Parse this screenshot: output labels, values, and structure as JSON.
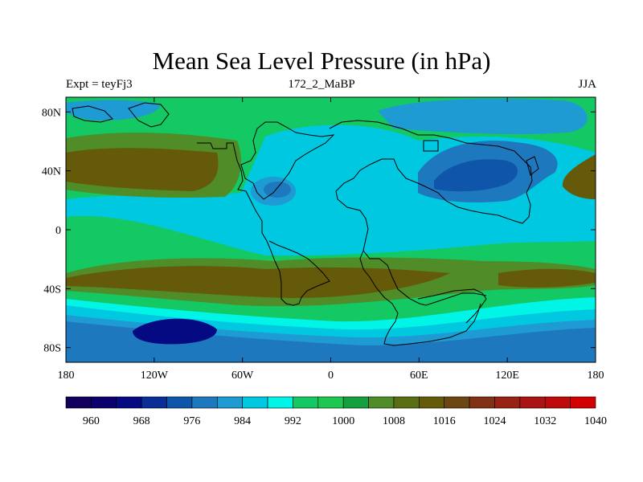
{
  "title": "Mean Sea Level Pressure (in hPa)",
  "subtitle_left": "Expt = teyFj3",
  "subtitle_center": "172_2_MaBP",
  "subtitle_right": "JJA",
  "map": {
    "projection": "cylindrical equidistant",
    "lon_range": [
      -180,
      180
    ],
    "lat_range": [
      -90,
      90
    ],
    "lat_ticks": [
      {
        "value": 80,
        "label": "80N"
      },
      {
        "value": 40,
        "label": "40N"
      },
      {
        "value": 0,
        "label": "0"
      },
      {
        "value": -40,
        "label": "40S"
      },
      {
        "value": -80,
        "label": "80S"
      }
    ],
    "lon_ticks": [
      {
        "value": -180,
        "label": "180"
      },
      {
        "value": -120,
        "label": "120W"
      },
      {
        "value": -60,
        "label": "60W"
      },
      {
        "value": 0,
        "label": "0"
      },
      {
        "value": 60,
        "label": "60E"
      },
      {
        "value": 120,
        "label": "120E"
      },
      {
        "value": 180,
        "label": "180"
      }
    ]
  },
  "colorbar": {
    "labels": [
      "960",
      "968",
      "976",
      "984",
      "992",
      "1000",
      "1008",
      "1016",
      "1024",
      "1032",
      "1040"
    ],
    "colors": [
      "#12005c",
      "#0a006e",
      "#050a82",
      "#0a2d96",
      "#0f55aa",
      "#1e78be",
      "#1e9bd2",
      "#00c8e1",
      "#00f5e6",
      "#14c864",
      "#1ec850",
      "#14a03c",
      "#508c28",
      "#5a6e14",
      "#645a0a",
      "#6e4614",
      "#823214",
      "#962314",
      "#aa1414",
      "#be0a0a",
      "#d20000"
    ],
    "level_colors": {
      "990": "#1e9bd2",
      "995": "#00c8e1",
      "1000": "#00f5e6",
      "1004": "#14c864",
      "1010": "#508c28",
      "1018": "#645a0a",
      "985": "#1e78be",
      "978": "#0f55aa",
      "970": "#050a82"
    }
  }
}
